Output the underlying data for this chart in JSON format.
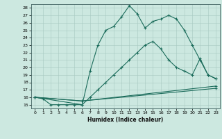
{
  "title": "",
  "xlabel": "Humidex (Indice chaleur)",
  "bg_color": "#cce8e0",
  "line_color": "#1a6b5a",
  "grid_color": "#a8c8c0",
  "xlim": [
    -0.5,
    23.5
  ],
  "ylim": [
    14.5,
    28.5
  ],
  "xticks": [
    0,
    1,
    2,
    3,
    4,
    5,
    6,
    7,
    8,
    9,
    10,
    11,
    12,
    13,
    14,
    15,
    16,
    17,
    18,
    19,
    20,
    21,
    22,
    23
  ],
  "yticks": [
    15,
    16,
    17,
    18,
    19,
    20,
    21,
    22,
    23,
    24,
    25,
    26,
    27,
    28
  ],
  "line1_x": [
    0,
    1,
    2,
    3,
    4,
    5,
    6,
    7,
    8,
    9,
    10,
    11,
    12,
    13,
    14,
    15,
    16,
    17,
    18,
    19,
    20,
    21,
    22,
    23
  ],
  "line1_y": [
    16.0,
    15.8,
    15.0,
    15.0,
    15.0,
    15.0,
    15.0,
    19.5,
    23.0,
    25.0,
    25.5,
    26.8,
    28.3,
    27.2,
    25.3,
    26.2,
    26.5,
    27.0,
    26.5,
    25.0,
    23.0,
    21.0,
    19.0,
    18.5
  ],
  "line2_x": [
    0,
    6,
    7,
    8,
    9,
    10,
    11,
    12,
    13,
    14,
    15,
    16,
    17,
    18,
    19,
    20,
    21,
    22,
    23
  ],
  "line2_y": [
    16.0,
    15.0,
    16.0,
    17.0,
    18.0,
    19.0,
    20.0,
    21.0,
    22.0,
    23.0,
    23.5,
    22.5,
    21.0,
    20.0,
    19.5,
    19.0,
    21.2,
    19.0,
    18.5
  ],
  "line3_x": [
    0,
    6,
    23
  ],
  "line3_y": [
    16.0,
    15.5,
    17.2
  ],
  "line4_x": [
    0,
    6,
    23
  ],
  "line4_y": [
    16.0,
    15.5,
    17.5
  ]
}
